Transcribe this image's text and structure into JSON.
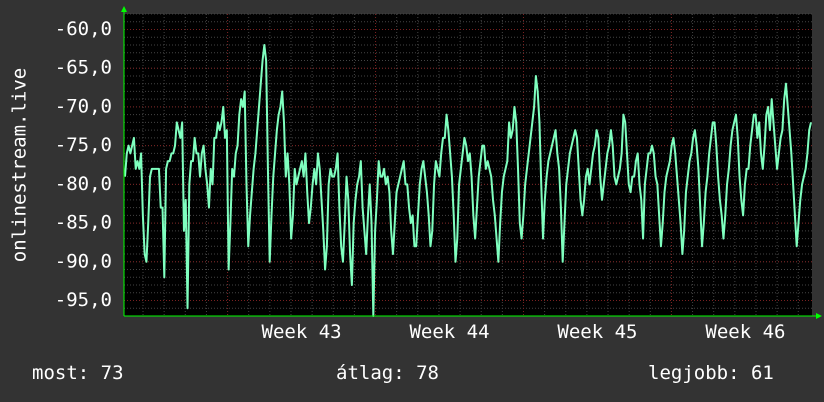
{
  "chart_data": {
    "type": "line",
    "ylabel": "onlinestream.live",
    "ylim": [
      -97,
      -58
    ],
    "y_ticks": [
      -60,
      -65,
      -70,
      -75,
      -80,
      -85,
      -90,
      -95
    ],
    "y_tick_labels": [
      "-60,0",
      "-65,0",
      "-70,0",
      "-75,0",
      "-80,0",
      "-85,0",
      "-90,0",
      "-95,0"
    ],
    "x_tick_labels": [
      "Week 43",
      "Week 44",
      "Week 45",
      "Week 46"
    ],
    "x_range_weeks": [
      42.3,
      46.95
    ],
    "grid": true,
    "series": [
      {
        "color": "#7fffbf",
        "values": [
          -79,
          -76,
          -75,
          -76,
          -75,
          -74,
          -78,
          -77,
          -78,
          -76,
          -84,
          -89,
          -90,
          -85,
          -79,
          -78,
          -78,
          -78,
          -78,
          -78,
          -83,
          -83,
          -92,
          -78,
          -77,
          -77,
          -76,
          -76,
          -75,
          -72,
          -73,
          -74,
          -72,
          -86,
          -82,
          -96,
          -80,
          -77,
          -77,
          -74,
          -76,
          -76,
          -79,
          -76,
          -75,
          -78,
          -80,
          -83,
          -78,
          -80,
          -74,
          -74,
          -72,
          -73,
          -72,
          -70,
          -74,
          -73,
          -91,
          -85,
          -78,
          -79,
          -76,
          -75,
          -71,
          -69,
          -70,
          -68,
          -80,
          -88,
          -84,
          -81,
          -78,
          -76,
          -73,
          -70,
          -67,
          -64,
          -62,
          -64,
          -78,
          -90,
          -84,
          -79,
          -76,
          -73,
          -71,
          -70,
          -68,
          -72,
          -79,
          -76,
          -80,
          -87,
          -84,
          -78,
          -80,
          -79,
          -78,
          -77,
          -79,
          -76,
          -81,
          -85,
          -83,
          -80,
          -78,
          -80,
          -76,
          -78,
          -82,
          -86,
          -91,
          -88,
          -80,
          -78,
          -79,
          -79,
          -78,
          -76,
          -83,
          -88,
          -90,
          -85,
          -79,
          -82,
          -89,
          -93,
          -85,
          -82,
          -80,
          -79,
          -77,
          -83,
          -86,
          -89,
          -84,
          -80,
          -85,
          -97,
          -86,
          -82,
          -77,
          -79,
          -79,
          -78,
          -80,
          -79,
          -81,
          -86,
          -89,
          -85,
          -81,
          -80,
          -79,
          -78,
          -77,
          -80,
          -80,
          -83,
          -85,
          -84,
          -88,
          -88,
          -84,
          -80,
          -78,
          -77,
          -79,
          -81,
          -84,
          -88,
          -86,
          -80,
          -77,
          -78,
          -79,
          -76,
          -74,
          -74,
          -71,
          -73,
          -76,
          -79,
          -84,
          -90,
          -87,
          -80,
          -78,
          -76,
          -74,
          -75,
          -77,
          -76,
          -79,
          -84,
          -87,
          -83,
          -79,
          -77,
          -75,
          -75,
          -78,
          -77,
          -78,
          -79,
          -82,
          -84,
          -87,
          -90,
          -85,
          -81,
          -79,
          -78,
          -77,
          -72,
          -74,
          -73,
          -70,
          -72,
          -78,
          -85,
          -87,
          -84,
          -80,
          -78,
          -76,
          -74,
          -72,
          -70,
          -66,
          -68,
          -72,
          -80,
          -87,
          -82,
          -79,
          -77,
          -76,
          -75,
          -74,
          -73,
          -76,
          -78,
          -83,
          -90,
          -85,
          -80,
          -78,
          -76,
          -75,
          -74,
          -73,
          -74,
          -78,
          -82,
          -84,
          -82,
          -79,
          -78,
          -80,
          -78,
          -76,
          -75,
          -73,
          -74,
          -79,
          -82,
          -80,
          -78,
          -76,
          -75,
          -73,
          -75,
          -79,
          -80,
          -79,
          -78,
          -76,
          -71,
          -72,
          -76,
          -80,
          -81,
          -79,
          -79,
          -77,
          -76,
          -80,
          -82,
          -87,
          -80,
          -78,
          -76,
          -76,
          -75,
          -76,
          -79,
          -80,
          -84,
          -88,
          -85,
          -81,
          -79,
          -78,
          -77,
          -75,
          -74,
          -76,
          -79,
          -82,
          -85,
          -89,
          -86,
          -81,
          -79,
          -77,
          -76,
          -74,
          -73,
          -75,
          -78,
          -83,
          -88,
          -85,
          -81,
          -79,
          -76,
          -74,
          -72,
          -72,
          -75,
          -79,
          -82,
          -84,
          -87,
          -84,
          -80,
          -78,
          -75,
          -73,
          -72,
          -71,
          -74,
          -79,
          -82,
          -84,
          -80,
          -78,
          -78,
          -75,
          -73,
          -71,
          -71,
          -74,
          -72,
          -76,
          -78,
          -75,
          -71,
          -70,
          -73,
          -69,
          -72,
          -75,
          -78,
          -76,
          -74,
          -73,
          -69,
          -67,
          -70,
          -73,
          -76,
          -80,
          -84,
          -88,
          -85,
          -82,
          -80,
          -79,
          -78,
          -76,
          -73,
          -72
        ]
      }
    ]
  },
  "stats": {
    "current": "most: 73",
    "average": "átlag: 78",
    "max": "legjobb: 61"
  },
  "colors": {
    "background": "#333333",
    "plot_background": "#000000",
    "line": "#7fffbf",
    "grid": "#444444",
    "grid_major": "#7a2020",
    "axis": "#00ff00",
    "text": "#ffffff"
  }
}
